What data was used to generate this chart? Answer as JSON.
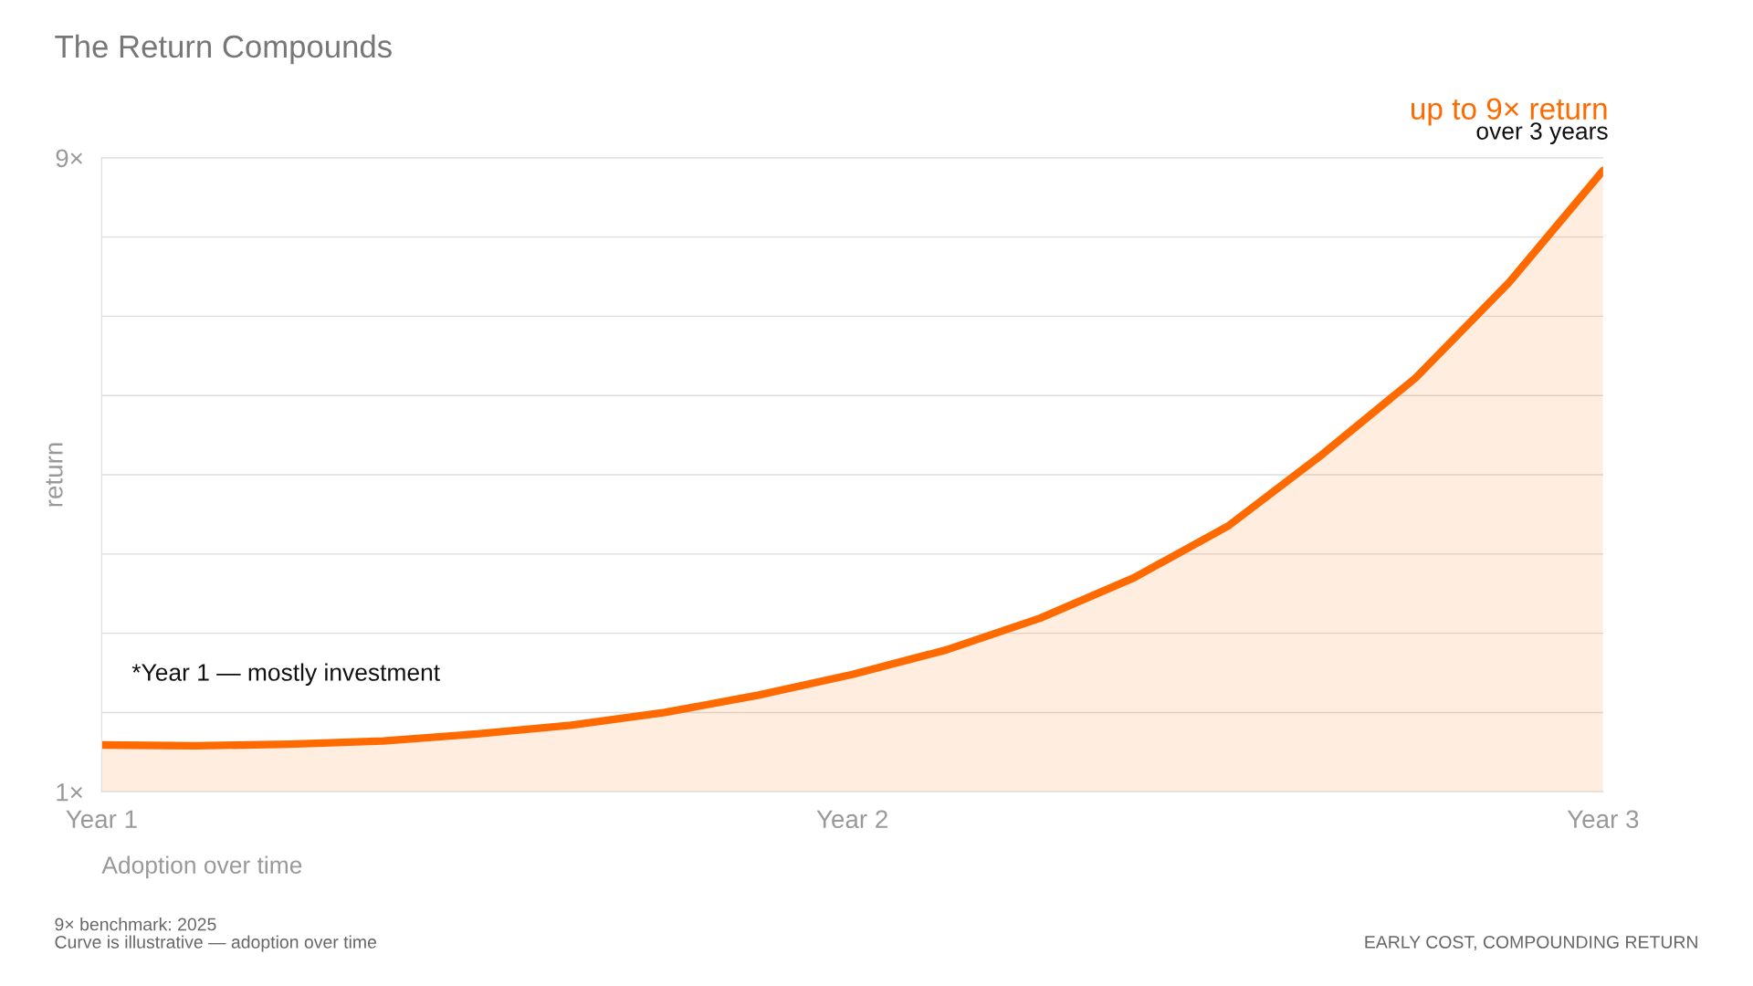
{
  "chart_data": {
    "type": "area",
    "title": "The Return Compounds",
    "xlabel": "Adoption over time",
    "ylabel": "return",
    "categories": [
      "Year 1",
      null,
      null,
      null,
      null,
      null,
      null,
      null,
      "Year 2",
      null,
      null,
      null,
      null,
      null,
      null,
      null,
      "Year 3"
    ],
    "series": [
      {
        "color": "#ff6a00",
        "values": [
          1.59,
          1.58,
          1.6,
          1.64,
          1.73,
          1.84,
          2.0,
          2.22,
          2.48,
          2.79,
          3.19,
          3.7,
          4.35,
          5.25,
          6.22,
          7.43,
          8.84
        ]
      }
    ],
    "ylim": [
      1,
      9
    ],
    "yticks": [
      {
        "value": 1,
        "label": "1×"
      },
      {
        "value": 2,
        "label": null
      },
      {
        "value": 3,
        "label": null
      },
      {
        "value": 4,
        "label": null
      },
      {
        "value": 5,
        "label": null
      },
      {
        "value": 6,
        "label": null
      },
      {
        "value": 7,
        "label": null
      },
      {
        "value": 8,
        "label": null
      },
      {
        "value": 9,
        "label": "9×"
      }
    ],
    "grid": "y",
    "legend": false,
    "annotations": [
      "up to 9× return",
      "over 3 years",
      "*Year 1 — mostly investment",
      "9× benchmark: 2025",
      "Curve is illustrative — adoption over time",
      "EARLY COST, COMPOUNDING RETURN"
    ]
  }
}
